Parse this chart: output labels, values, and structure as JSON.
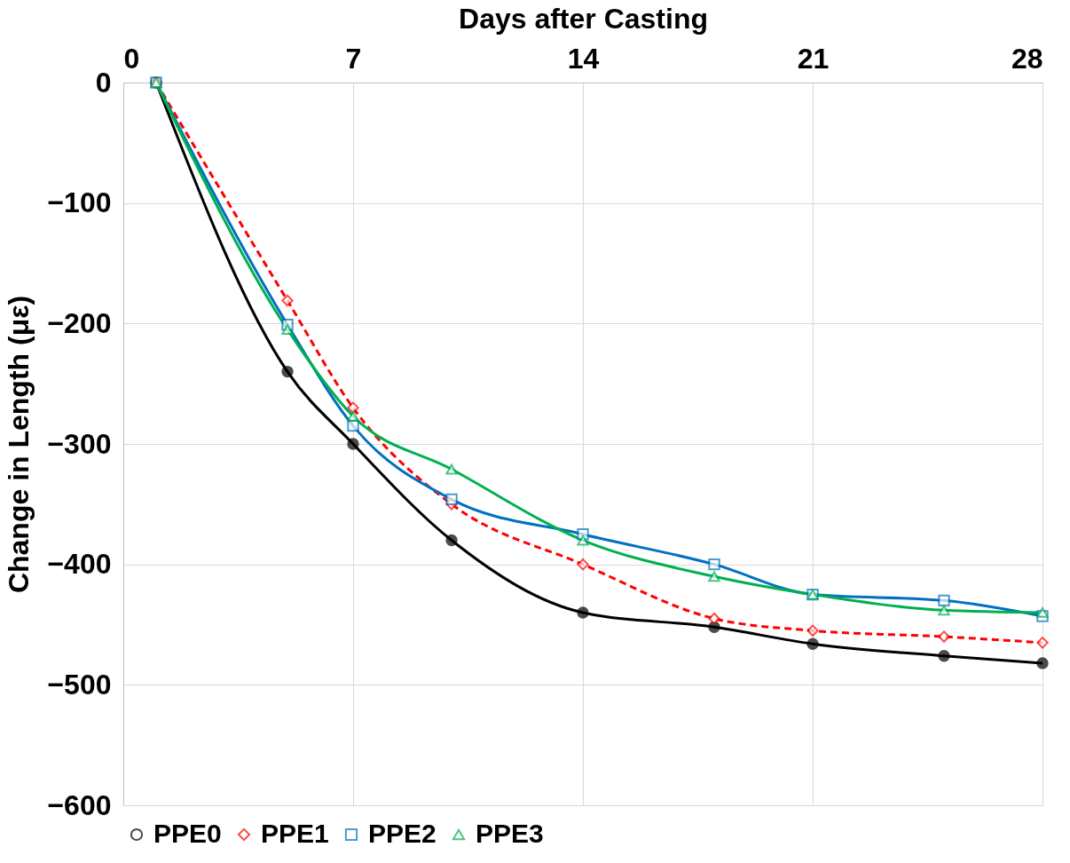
{
  "chart_data": {
    "type": "line",
    "xlabel": "Days after Casting",
    "ylabel": "Change in Length (με)",
    "x": [
      1,
      5,
      7,
      10,
      14,
      18,
      21,
      25,
      28
    ],
    "series": [
      {
        "name": "PPE0",
        "color": "#000000",
        "marker": "circle",
        "line_style": "solid",
        "values": [
          0,
          -240,
          -300,
          -380,
          -440,
          -452,
          -466,
          -476,
          -482
        ]
      },
      {
        "name": "PPE1",
        "color": "#ff0000",
        "marker": "diamond",
        "line_style": "dashed",
        "values": [
          0,
          -181,
          -270,
          -350,
          -400,
          -445,
          -455,
          -460,
          -465
        ]
      },
      {
        "name": "PPE2",
        "color": "#0070c0",
        "marker": "square",
        "line_style": "solid",
        "values": [
          0,
          -201,
          -285,
          -346,
          -375,
          -400,
          -425,
          -430,
          -443
        ]
      },
      {
        "name": "PPE3",
        "color": "#00b050",
        "marker": "triangle",
        "line_style": "solid",
        "values": [
          0,
          -205,
          -277,
          -321,
          -380,
          -410,
          -425,
          -438,
          -440
        ]
      }
    ],
    "xlim": [
      0,
      28
    ],
    "xticks": [
      0,
      7,
      14,
      21,
      28
    ],
    "ylim": [
      -600,
      0
    ],
    "yticks": [
      -600,
      -500,
      -400,
      -300,
      -200,
      -100,
      0
    ],
    "grid": true,
    "legend": "bottom"
  }
}
